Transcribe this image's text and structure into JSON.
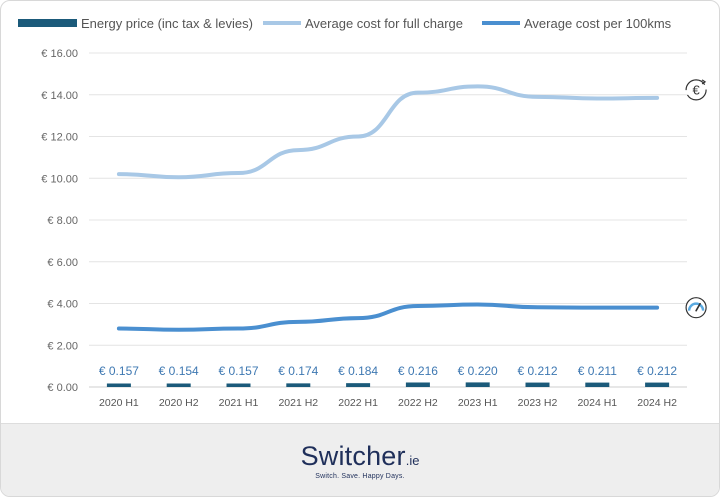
{
  "chart_data": {
    "type": "line",
    "categories": [
      "2020 H1",
      "2020 H2",
      "2021 H1",
      "2021 H2",
      "2022 H1",
      "2022 H2",
      "2023 H1",
      "2023 H2",
      "2024 H1",
      "2024 H2"
    ],
    "ylim": [
      0,
      16
    ],
    "y_ticks": [
      "€ 0.00",
      "€ 2.00",
      "€ 4.00",
      "€ 6.00",
      "€ 8.00",
      "€ 10.00",
      "€ 12.00",
      "€ 14.00",
      "€ 16.00"
    ],
    "grid": true,
    "legend": "top",
    "series": [
      {
        "name": "Energy price (inc tax & levies)",
        "type": "bar",
        "color": "#1b5a7a",
        "values": [
          0.157,
          0.154,
          0.157,
          0.174,
          0.184,
          0.216,
          0.22,
          0.212,
          0.211,
          0.212
        ],
        "labels": [
          "€ 0.157",
          "€ 0.154",
          "€ 0.157",
          "€ 0.174",
          "€ 0.184",
          "€ 0.216",
          "€ 0.220",
          "€ 0.212",
          "€ 0.211",
          "€ 0.212"
        ]
      },
      {
        "name": "Average cost for full charge",
        "type": "line",
        "color": "#a8c8e6",
        "values": [
          10.2,
          10.05,
          10.25,
          11.35,
          12.0,
          14.1,
          14.4,
          13.9,
          13.82,
          13.85
        ]
      },
      {
        "name": "Average cost per 100kms",
        "type": "line",
        "color": "#4a8fd0",
        "values": [
          2.8,
          2.74,
          2.8,
          3.12,
          3.3,
          3.88,
          3.95,
          3.82,
          3.8,
          3.8
        ]
      }
    ],
    "icons": [
      "euro-refresh-icon",
      "speedometer-icon"
    ]
  },
  "footer": {
    "brand": "Switcher",
    "suffix": ".ie",
    "tagline": "Switch. Save. Happy Days."
  }
}
